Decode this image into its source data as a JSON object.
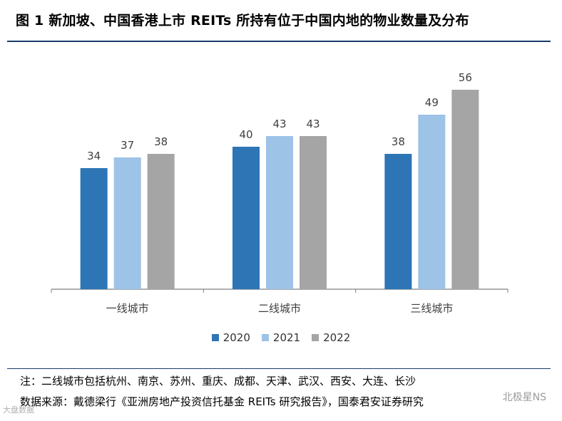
{
  "title": "图 1 新加坡、中国香港上市 REITs 所持有位于中国内地的物业数量及分布",
  "note": "注：二线城市包括杭州、南京、苏州、重庆、成都、天津、武汉、西安、大连、长沙",
  "source": "数据来源：戴德梁行《亚洲房地产投资信托基金 REITs 研究报告》，国泰君安证券研究",
  "watermark": "北极星NS",
  "watermark_left": "大盘数据",
  "colors": {
    "2020": "#2e75b6",
    "2021": "#9dc3e6",
    "2022": "#a5a5a5",
    "axis": "#7f7f7f",
    "rule": "#1a3a6b"
  },
  "chart_data": {
    "type": "bar",
    "title": "",
    "xlabel": "",
    "ylabel": "",
    "ylim": [
      0,
      60
    ],
    "grid": false,
    "legend_position": "bottom",
    "categories": [
      "一线城市",
      "二线城市",
      "三线城市"
    ],
    "series": [
      {
        "name": "2020",
        "color": "#2e75b6",
        "values": [
          34,
          40,
          38
        ]
      },
      {
        "name": "2021",
        "color": "#9dc3e6",
        "values": [
          37,
          43,
          49
        ]
      },
      {
        "name": "2022",
        "color": "#a5a5a5",
        "values": [
          38,
          43,
          56
        ]
      }
    ]
  }
}
